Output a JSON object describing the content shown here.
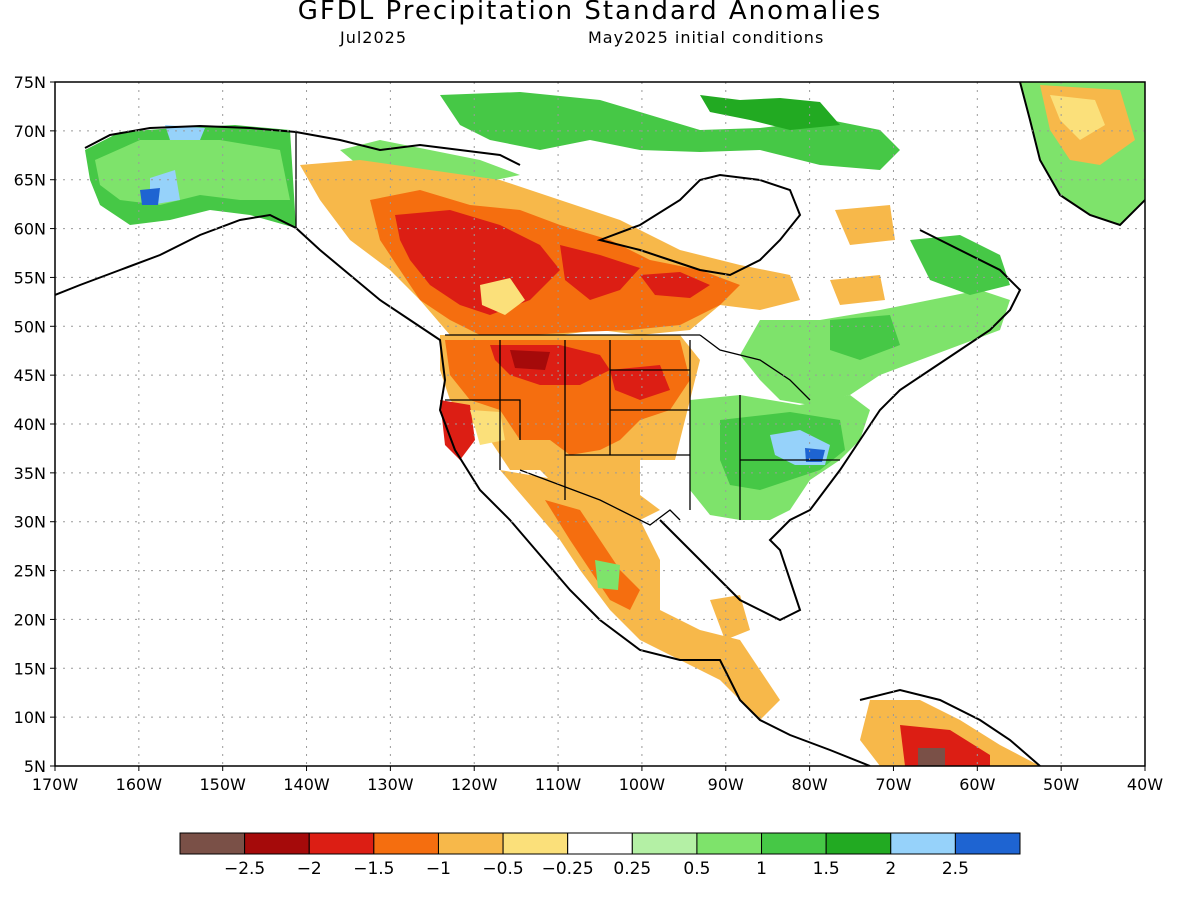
{
  "title": "GFDL Precipitation Standard Anomalies",
  "valid_month": "Jul2025",
  "initial_conditions": "May2025 initial conditions",
  "lat_labels": [
    "75N",
    "70N",
    "65N",
    "60N",
    "55N",
    "50N",
    "45N",
    "40N",
    "35N",
    "30N",
    "25N",
    "20N",
    "15N",
    "10N",
    "5N"
  ],
  "lon_labels": [
    "170W",
    "160W",
    "150W",
    "140W",
    "130W",
    "120W",
    "110W",
    "100W",
    "90W",
    "80W",
    "70W",
    "60W",
    "50W",
    "40W"
  ],
  "colorbar": {
    "colors": [
      "#7a5047",
      "#a50a0a",
      "#dc1e14",
      "#f56e0f",
      "#f7b84a",
      "#fbe07a",
      "#ffffff",
      "#b4f0a5",
      "#7ee36b",
      "#46c846",
      "#22aa22",
      "#96d2fa",
      "#1e64d2"
    ],
    "labels": [
      "-2.5",
      "-2",
      "-1.5",
      "-1",
      "-0.5",
      "-0.25",
      "0.25",
      "0.5",
      "1",
      "1.5",
      "2",
      "2.5"
    ]
  },
  "map_colors": {
    "ocean": "#ffffff",
    "coast": "#000000",
    "grid": "#9a9a9a"
  }
}
